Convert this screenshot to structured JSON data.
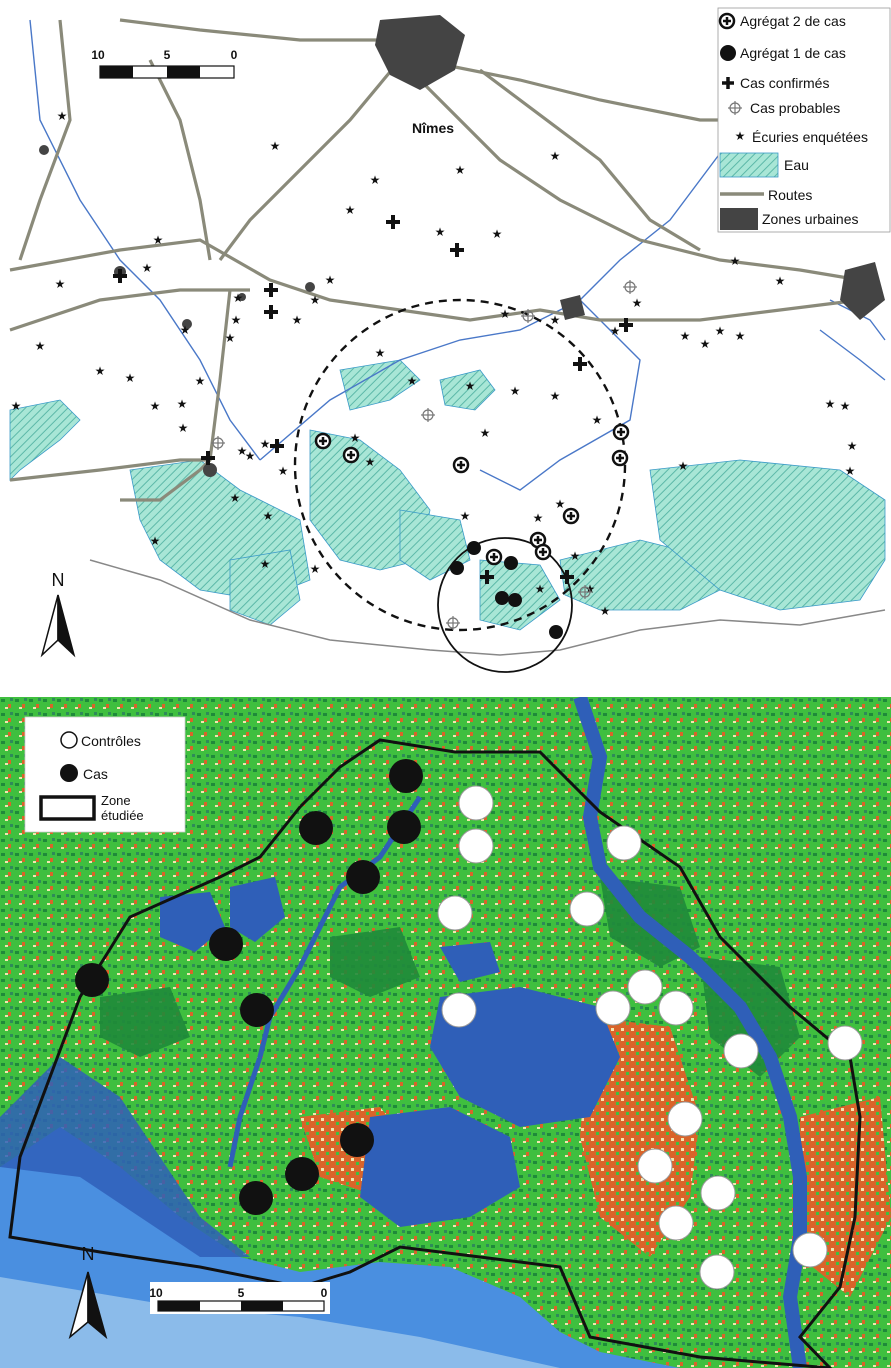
{
  "map1": {
    "city_label": "Nîmes",
    "scale": {
      "ticks": [
        "10",
        "5",
        "0"
      ]
    },
    "north_label": "N",
    "legend": [
      {
        "label": "Agrégat 2 de cas",
        "icon": "circled-plus-icon"
      },
      {
        "label": "Agrégat 1 de cas",
        "icon": "filled-circle-icon"
      },
      {
        "label": "Cas confirmés",
        "icon": "bold-cross-icon"
      },
      {
        "label": "Cas probables",
        "icon": "thin-cross-icon"
      },
      {
        "label": "Écuries enquétées",
        "icon": "star-icon"
      },
      {
        "label": "Eau",
        "icon": "hatched-water-swatch",
        "color": "#8fd6c8"
      },
      {
        "label": "Routes",
        "icon": "road-line-icon",
        "color": "#8a8a7a"
      },
      {
        "label": "Zones urbaines",
        "icon": "urban-swatch",
        "color": "#444444"
      }
    ]
  },
  "map2": {
    "north_label": "N",
    "scale": {
      "ticks": [
        "10",
        "5",
        "0"
      ]
    },
    "legend": [
      {
        "label": "Contrôles",
        "icon": "open-circle-icon"
      },
      {
        "label": "Cas",
        "icon": "filled-circle-icon"
      },
      {
        "label": "Zone étudiée",
        "icon": "outline-rectangle-icon"
      }
    ],
    "colors": {
      "land": "#3fbf3f",
      "forest": "#1f8a3a",
      "water": "#2f5fb8",
      "sea": "#4a8fe0",
      "urban": "#d9642a",
      "sand": "#f2e6b0"
    }
  }
}
